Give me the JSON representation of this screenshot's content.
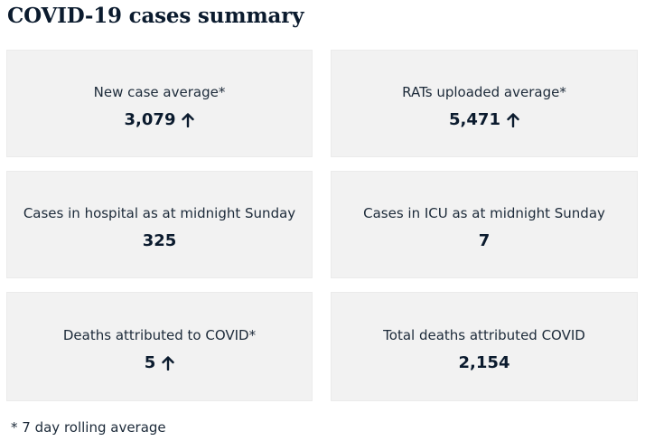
{
  "page": {
    "title": "COVID-19 cases summary",
    "footnote": "* 7 day rolling average"
  },
  "cards": [
    {
      "label": "New case average*",
      "value": "3,079",
      "trend": "up",
      "icon": "arrow-up-icon"
    },
    {
      "label": "RATs uploaded average*",
      "value": "5,471",
      "trend": "up",
      "icon": "arrow-up-icon"
    },
    {
      "label": "Cases in hospital as at midnight Sunday",
      "value": "325",
      "trend": "none"
    },
    {
      "label": "Cases in ICU as at midnight Sunday",
      "value": "7",
      "trend": "none"
    },
    {
      "label": "Deaths attributed to COVID*",
      "value": "5",
      "trend": "up",
      "icon": "arrow-up-icon"
    },
    {
      "label": "Total deaths attributed COVID",
      "value": "2,154",
      "trend": "none"
    }
  ],
  "colors": {
    "card_background": "#f2f2f2",
    "text": "#1c2a39",
    "heading": "#0b1b2e"
  }
}
